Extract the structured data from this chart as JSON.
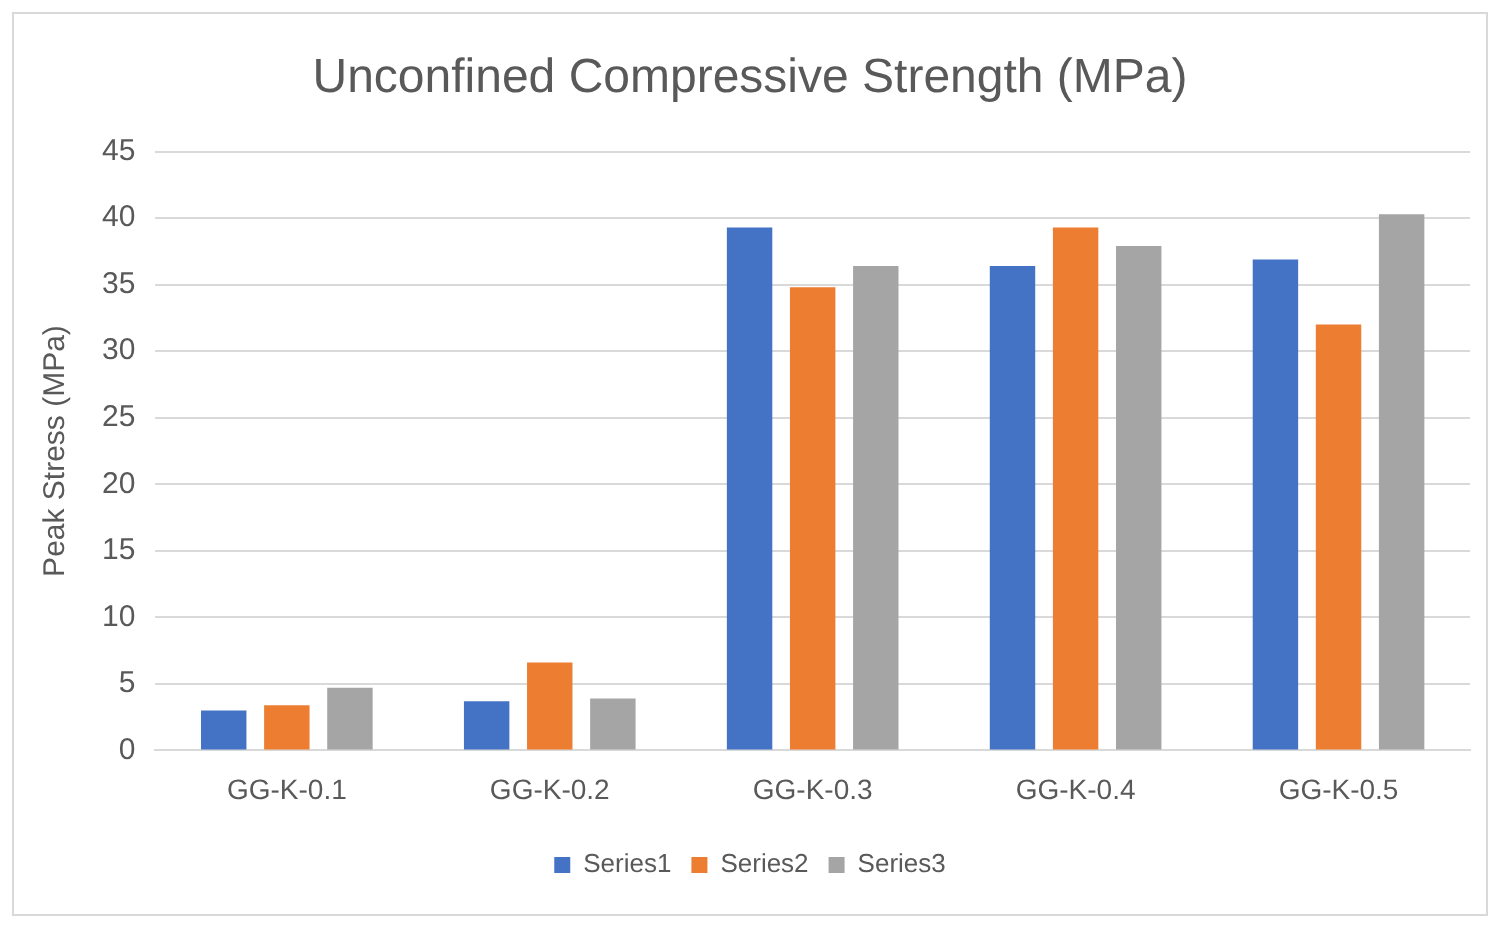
{
  "chart_data": {
    "type": "bar",
    "title": "Unconfined Compressive Strength (MPa)",
    "ylabel": "Peak Stress (MPa)",
    "categories": [
      "GG-K-0.1",
      "GG-K-0.2",
      "GG-K-0.3",
      "GG-K-0.4",
      "GG-K-0.5"
    ],
    "series": [
      {
        "name": "Series1",
        "color": "#4472c4",
        "values": [
          3.0,
          3.7,
          39.3,
          36.4,
          36.9
        ]
      },
      {
        "name": "Series2",
        "color": "#ed7d31",
        "values": [
          3.4,
          6.6,
          34.8,
          39.3,
          32.0
        ]
      },
      {
        "name": "Series3",
        "color": "#a5a5a5",
        "values": [
          4.7,
          3.9,
          36.4,
          37.9,
          40.3
        ]
      }
    ],
    "ylim": [
      0,
      45
    ],
    "yticks": [
      0,
      5,
      10,
      15,
      20,
      25,
      30,
      35,
      40,
      45
    ],
    "grid": "y",
    "legend": "bottom"
  }
}
